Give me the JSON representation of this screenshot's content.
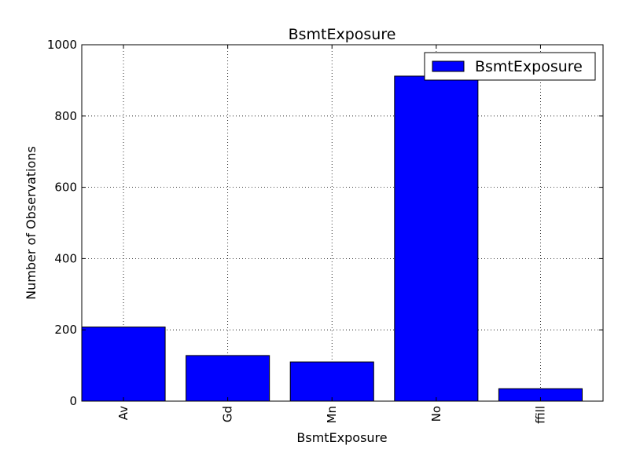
{
  "chart_data": {
    "type": "bar",
    "title": "BsmtExposure",
    "xlabel": "BsmtExposure",
    "ylabel": "Number of Observations",
    "categories": [
      "Av",
      "Gd",
      "Mn",
      "No",
      "ffill"
    ],
    "series": [
      {
        "name": "BsmtExposure",
        "values": [
          208,
          128,
          110,
          912,
          35
        ]
      }
    ],
    "ylim": [
      0,
      1000
    ],
    "yticks": [
      0,
      200,
      400,
      600,
      800,
      1000
    ],
    "grid": true,
    "legend_position": "top-right",
    "bar_color": "#0000ff",
    "edge_color": "#000000"
  }
}
